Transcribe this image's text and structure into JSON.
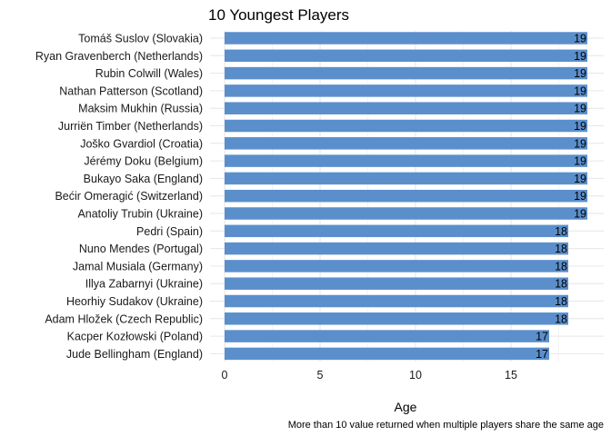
{
  "chart_data": {
    "type": "bar",
    "orientation": "horizontal",
    "title": "10 Youngest Players",
    "xlabel": "Age",
    "ylabel": "",
    "caption": "More than 10 value returned when multiple players share the same age",
    "xlim": [
      0,
      19.5
    ],
    "xticks": [
      "0",
      "5",
      "10",
      "15"
    ],
    "bar_color": "#5b8fcc",
    "grid": true,
    "categories": [
      "Tomáš Suslov (Slovakia)",
      "Ryan Gravenberch (Netherlands)",
      "Rubin Colwill (Wales)",
      "Nathan Patterson (Scotland)",
      "Maksim Mukhin (Russia)",
      "Jurriën Timber (Netherlands)",
      "Joško Gvardiol (Croatia)",
      "Jérémy Doku (Belgium)",
      "Bukayo Saka (England)",
      "Bećir Omeragić (Switzerland)",
      "Anatoliy Trubin (Ukraine)",
      "Pedri (Spain)",
      "Nuno Mendes (Portugal)",
      "Jamal Musiala (Germany)",
      "Illya Zabarnyi (Ukraine)",
      "Heorhiy Sudakov (Ukraine)",
      "Adam Hložek (Czech Republic)",
      "Kacper Kozłowski (Poland)",
      "Jude Bellingham (England)"
    ],
    "values": [
      19,
      19,
      19,
      19,
      19,
      19,
      19,
      19,
      19,
      19,
      19,
      18,
      18,
      18,
      18,
      18,
      18,
      17,
      17
    ]
  }
}
